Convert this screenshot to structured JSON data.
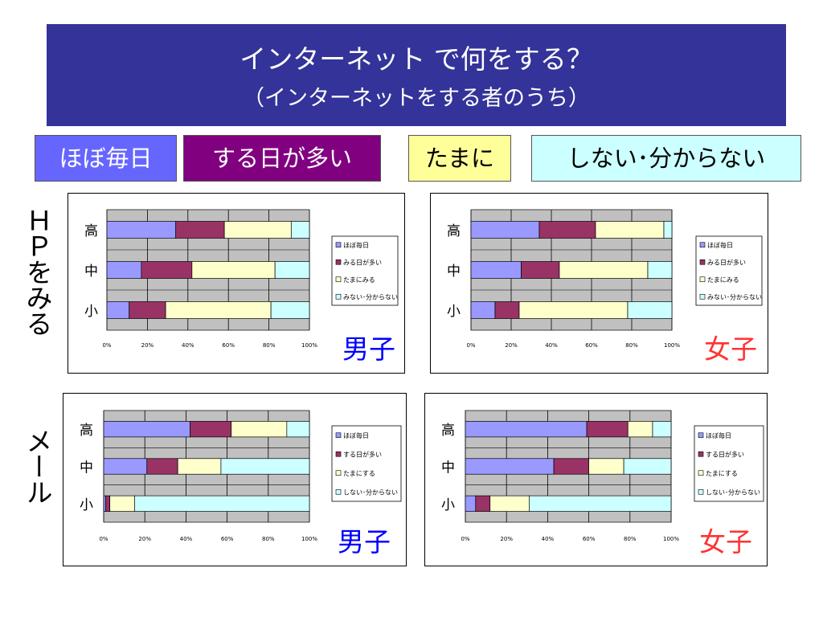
{
  "slide": {
    "title": "インターネット で何をする？",
    "subtitle": "（インターネットをする者のうち）",
    "key": [
      "ほぼ毎日",
      "する日が多い",
      "たまに",
      "しない･分からない"
    ],
    "rows": {
      "web": "ＨＰをみる",
      "mail": "メール"
    }
  },
  "colors": {
    "daily": "#9999ff",
    "often": "#993366",
    "sometimes": "#ffffcc",
    "never": "#ccffff",
    "plot_bg": "#c0c0c0",
    "title_bg": "#333399",
    "boy": "#0000ff",
    "girl": "#ff3333"
  },
  "chart_data": [
    {
      "type": "bar",
      "orientation": "horizontal",
      "stacked": "percent",
      "gender_label": "男子",
      "categories": [
        "高",
        "中",
        "小"
      ],
      "xlim": [
        0,
        100
      ],
      "xticks": [
        "0%",
        "20%",
        "40%",
        "60%",
        "80%",
        "100%"
      ],
      "grid": true,
      "legend_position": "right",
      "series": [
        {
          "name": "ほぼ毎日",
          "values": [
            34,
            17,
            11
          ]
        },
        {
          "name": "みる日が多い",
          "values": [
            24,
            25,
            18
          ]
        },
        {
          "name": "たまにみる",
          "values": [
            33,
            41,
            52
          ]
        },
        {
          "name": "みない･分からない",
          "values": [
            9,
            17,
            19
          ]
        }
      ]
    },
    {
      "type": "bar",
      "orientation": "horizontal",
      "stacked": "percent",
      "gender_label": "女子",
      "categories": [
        "高",
        "中",
        "小"
      ],
      "xlim": [
        0,
        100
      ],
      "xticks": [
        "0%",
        "20%",
        "40%",
        "60%",
        "80%",
        "100%"
      ],
      "grid": true,
      "legend_position": "right",
      "series": [
        {
          "name": "ほぼ毎日",
          "values": [
            34,
            25,
            12
          ]
        },
        {
          "name": "みる日が多い",
          "values": [
            28,
            19,
            12
          ]
        },
        {
          "name": "たまにみる",
          "values": [
            34,
            44,
            54
          ]
        },
        {
          "name": "みない･分からない",
          "values": [
            4,
            12,
            22
          ]
        }
      ]
    },
    {
      "type": "bar",
      "orientation": "horizontal",
      "stacked": "percent",
      "gender_label": "男子",
      "categories": [
        "高",
        "中",
        "小"
      ],
      "xlim": [
        0,
        100
      ],
      "xticks": [
        "0%",
        "20%",
        "40%",
        "60%",
        "80%",
        "100%"
      ],
      "grid": true,
      "legend_position": "right",
      "series": [
        {
          "name": "ほぼ毎日",
          "values": [
            42,
            21,
            1
          ]
        },
        {
          "name": "する日が多い",
          "values": [
            20,
            15,
            2
          ]
        },
        {
          "name": "たまにする",
          "values": [
            27,
            21,
            12
          ]
        },
        {
          "name": "しない･分からない",
          "values": [
            11,
            43,
            85
          ]
        }
      ]
    },
    {
      "type": "bar",
      "orientation": "horizontal",
      "stacked": "percent",
      "gender_label": "女子",
      "categories": [
        "高",
        "中",
        "小"
      ],
      "xlim": [
        0,
        100
      ],
      "xticks": [
        "0%",
        "20%",
        "40%",
        "60%",
        "80%",
        "100%"
      ],
      "grid": true,
      "legend_position": "right",
      "series": [
        {
          "name": "ほぼ毎日",
          "values": [
            59,
            43,
            5
          ]
        },
        {
          "name": "する日が多い",
          "values": [
            20,
            17,
            7
          ]
        },
        {
          "name": "たまにする",
          "values": [
            12,
            17,
            19
          ]
        },
        {
          "name": "しない･分からない",
          "values": [
            9,
            23,
            69
          ]
        }
      ]
    }
  ]
}
